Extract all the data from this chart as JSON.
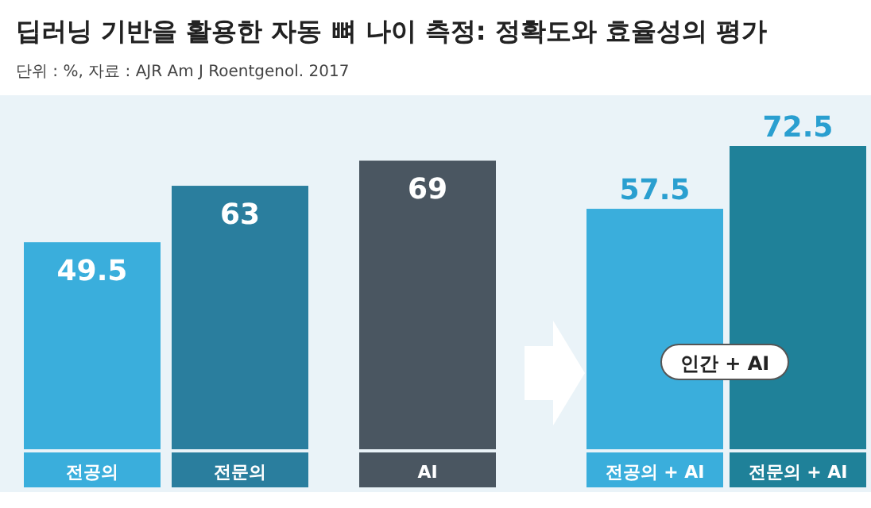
{
  "chart_data": {
    "type": "bar",
    "title": "딥러닝 기반을 활용한 자동 뼈 나이 측정: 정확도와 효율성의 평가",
    "subtitle": "단위 : %, 자료 : AJR Am J Roentgenol. 2017",
    "categories": [
      "전공의",
      "전문의",
      "AI",
      "전공의 + AI",
      "전문의 + AI"
    ],
    "values": [
      49.5,
      63,
      69,
      57.5,
      72.5
    ],
    "colors": [
      "#3aaedc",
      "#2a7e9e",
      "#4a5661",
      "#3aaedc",
      "#1f8199"
    ],
    "data_labels": true,
    "annotations": [
      "인간 + AI"
    ]
  }
}
